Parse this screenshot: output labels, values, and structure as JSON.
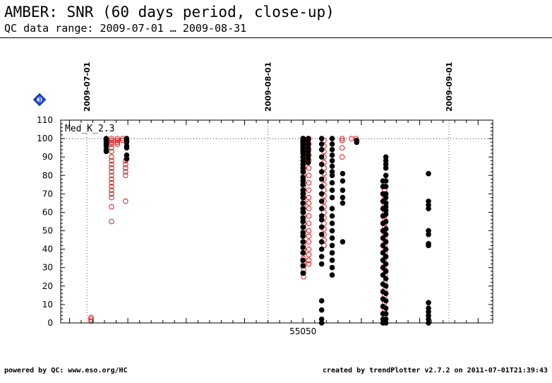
{
  "header": {
    "title": "AMBER: SNR (60 days period, close-up)",
    "subtitle": "QC data range: 2009-07-01 … 2009-08-31"
  },
  "footer": {
    "left": "powered by QC: www.eso.org/HC",
    "right": "created by trendPlotter v2.7.2 on 2011-07-01T21:39:43"
  },
  "badge": {
    "label": "3",
    "color": "#1a3fd6",
    "icon": "diamond-badge-icon"
  },
  "chart_data": {
    "type": "scatter",
    "x_unit": "MJD",
    "xlim": [
      55008.5,
      55082.5
    ],
    "ylim": [
      0,
      110
    ],
    "y_ticks": [
      0,
      10,
      20,
      30,
      40,
      50,
      60,
      70,
      80,
      90,
      100,
      110
    ],
    "x_ticks": [
      {
        "value": 55050,
        "label": "55050"
      }
    ],
    "date_markers": [
      {
        "value": 55013,
        "label": "2009-07-01"
      },
      {
        "value": 55044,
        "label": "2009-08-01"
      },
      {
        "value": 55075,
        "label": "2009-09-01"
      }
    ],
    "reference_line": {
      "value": 100,
      "label": "Med_K_2.3"
    },
    "grid": false,
    "colors": {
      "black_series": "#000000",
      "red_series": "#e00000",
      "axis": "#000000"
    },
    "series": [
      {
        "marker": "filled",
        "color": "#000000",
        "groups": [
          {
            "x": 55016.3,
            "y": [
              100,
              99,
              98,
              97,
              96,
              94,
              93
            ]
          },
          {
            "x": 55019.8,
            "y": [
              100,
              99,
              98,
              96,
              95,
              91,
              89
            ]
          },
          {
            "x": 55050.0,
            "y": [
              100,
              100,
              99,
              99,
              98,
              98,
              97,
              96,
              95,
              94,
              93,
              92,
              90,
              88,
              86,
              84,
              82,
              79,
              77,
              75,
              72,
              70,
              68,
              65,
              62,
              60,
              57,
              55,
              52,
              49,
              47,
              44,
              41,
              38,
              34,
              31,
              27
            ]
          },
          {
            "x": 55050.9,
            "y": [
              100,
              99,
              97,
              95,
              93,
              91,
              89,
              87
            ]
          },
          {
            "x": 55053.2,
            "y": [
              100,
              97,
              94,
              90,
              86,
              82,
              78,
              74,
              70,
              66,
              62,
              58,
              56,
              52,
              48,
              44,
              40,
              36,
              32,
              12,
              7,
              2,
              0
            ]
          },
          {
            "x": 55055.0,
            "y": [
              100,
              97,
              94,
              91,
              88,
              85,
              82,
              80,
              76,
              72,
              68,
              62,
              58,
              54,
              50,
              46,
              42,
              38,
              34,
              30,
              26
            ]
          },
          {
            "x": 55056.8,
            "y": [
              81,
              77,
              72,
              68,
              65,
              44
            ]
          },
          {
            "x": 55059.2,
            "y": [
              99,
              98
            ]
          },
          {
            "x": 55063.7,
            "y": [
              77,
              74,
              70,
              66,
              62,
              58,
              54,
              50,
              46,
              42,
              38,
              34,
              30,
              26,
              21,
              17,
              13,
              9,
              5,
              2,
              0
            ]
          },
          {
            "x": 55064.2,
            "y": [
              90,
              88,
              86,
              84,
              80,
              77,
              74,
              70,
              68,
              65,
              63,
              61,
              59,
              55,
              51,
              48,
              44,
              40,
              36,
              32,
              28,
              24,
              20,
              16,
              12,
              8,
              5,
              2,
              0
            ]
          },
          {
            "x": 55071.5,
            "y": [
              81,
              66,
              64,
              62,
              50,
              48,
              43,
              42,
              11,
              8,
              6,
              4,
              2,
              0
            ]
          }
        ]
      },
      {
        "marker": "open",
        "color": "#e00000",
        "groups": [
          {
            "x": 55013.7,
            "y": [
              3,
              2,
              1
            ]
          },
          {
            "x": 55017.2,
            "y": [
              100,
              99,
              98,
              97,
              95,
              93,
              90,
              88,
              86,
              84,
              82,
              80,
              78,
              76,
              74,
              72,
              70,
              68,
              63,
              55
            ]
          },
          {
            "x": 55018.2,
            "y": [
              100,
              99,
              98,
              97
            ]
          },
          {
            "x": 55019.1,
            "y": [
              100,
              99
            ]
          },
          {
            "x": 55019.6,
            "y": [
              88,
              86,
              84,
              82,
              80,
              66
            ]
          },
          {
            "x": 55050.1,
            "y": [
              100,
              98,
              96,
              94,
              92,
              90,
              88,
              86,
              84,
              82,
              80,
              78,
              76,
              74,
              72,
              70,
              68,
              66,
              64,
              62,
              60,
              58,
              56,
              54,
              52,
              50,
              48,
              44,
              42,
              40,
              38,
              35,
              33,
              31,
              29,
              27,
              25
            ]
          },
          {
            "x": 55051.0,
            "y": [
              100,
              97,
              94,
              91,
              88,
              84,
              80,
              76,
              72,
              68,
              65,
              62,
              58,
              54,
              50,
              47,
              44,
              40,
              37,
              34,
              32
            ]
          },
          {
            "x": 55053.6,
            "y": [
              99,
              96,
              93,
              90,
              87,
              84,
              81,
              78,
              75,
              72,
              69,
              66,
              63,
              60,
              57,
              54,
              51,
              48,
              45,
              42
            ]
          },
          {
            "x": 55056.7,
            "y": [
              100,
              99,
              95,
              90
            ]
          },
          {
            "x": 55058.3,
            "y": [
              100
            ]
          },
          {
            "x": 55059.1,
            "y": [
              100
            ]
          },
          {
            "x": 55064.0,
            "y": [
              74,
              72,
              70,
              68,
              66,
              64,
              62,
              60,
              58,
              56,
              54,
              52,
              50,
              48,
              46,
              44,
              42,
              40,
              38,
              35,
              32,
              29,
              26,
              22,
              18,
              15,
              11,
              7,
              3,
              1
            ]
          }
        ]
      }
    ]
  }
}
